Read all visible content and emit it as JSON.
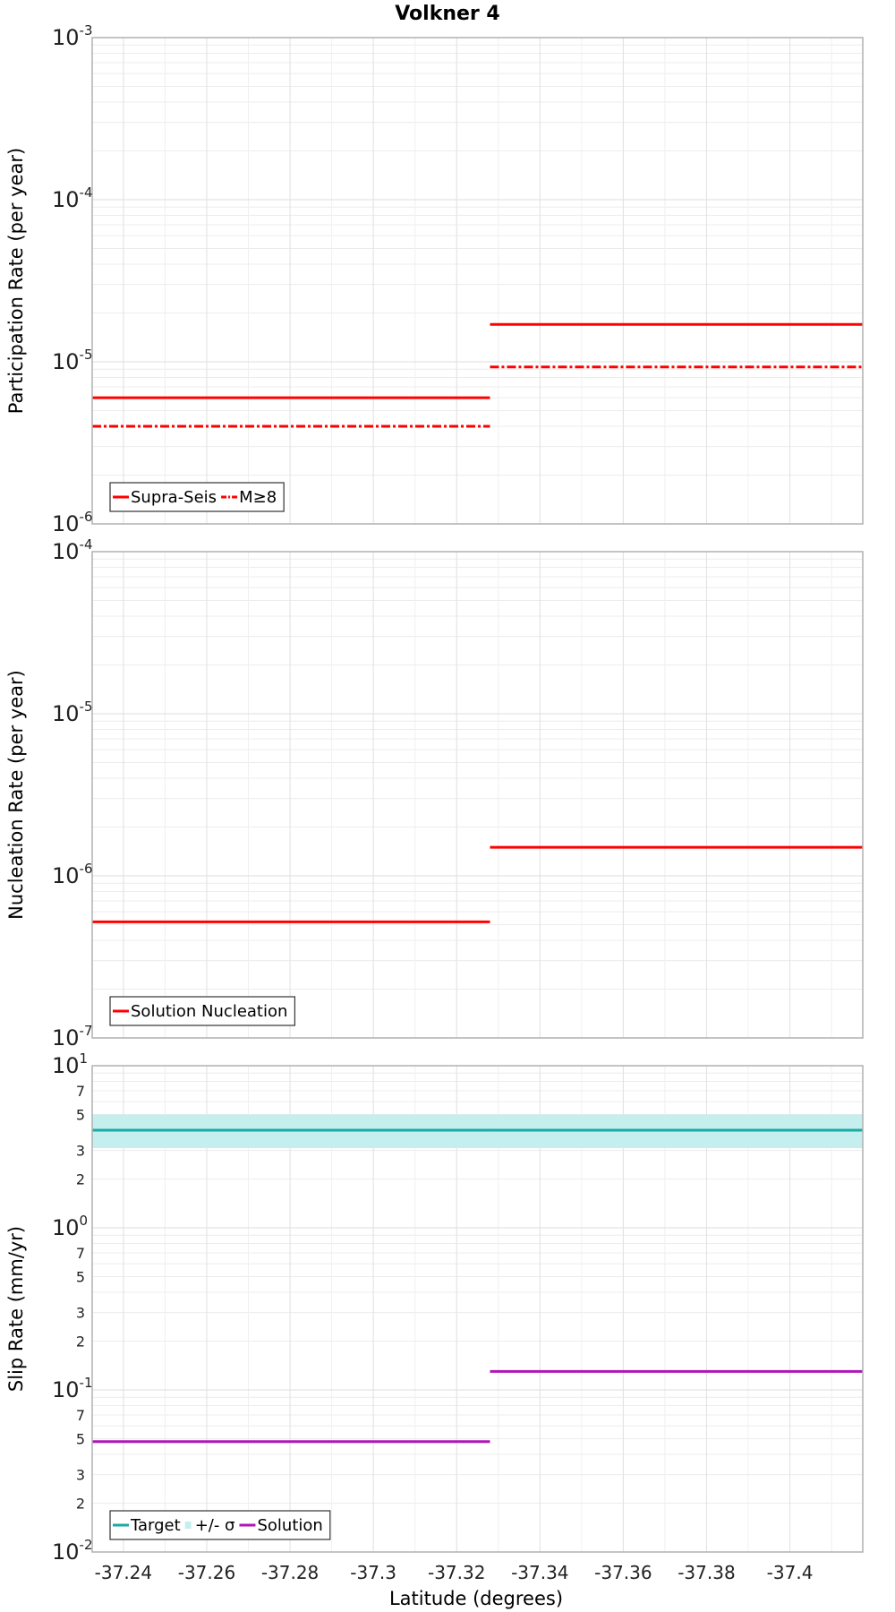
{
  "chart_data": {
    "title": "Volkner 4",
    "xlabel": "Latitude (degrees)",
    "xlim": [
      -37.2325,
      -37.4175
    ],
    "xticks": [
      "-37.24",
      "-37.26",
      "-37.28",
      "-37.3",
      "-37.32",
      "-37.34",
      "-37.36",
      "-37.38",
      "-37.4"
    ],
    "segment_bounds": [
      -37.2325,
      -37.328,
      -37.4175
    ],
    "panels": [
      {
        "type": "line",
        "ylabel": "Participation Rate (per year)",
        "yscale": "log",
        "ylim_exp": [
          -6,
          -3
        ],
        "series": [
          {
            "name": "Supra-Seis",
            "style": "solid",
            "color": "#ff0000",
            "values": [
              6e-06,
              1.7e-05
            ]
          },
          {
            "name": "M≥8",
            "style": "dashdot",
            "color": "#ff0000",
            "values": [
              4e-06,
              9.3e-06
            ]
          }
        ],
        "legend": [
          {
            "label": "Supra-Seis",
            "kind": "solid",
            "color": "#ff0000"
          },
          {
            "label": "M≥8",
            "kind": "dashdot",
            "color": "#ff0000"
          }
        ]
      },
      {
        "type": "line",
        "ylabel": "Nucleation Rate (per year)",
        "yscale": "log",
        "ylim_exp": [
          -7,
          -4
        ],
        "series": [
          {
            "name": "Solution Nucleation",
            "style": "solid",
            "color": "#ff0000",
            "values": [
              5.2e-07,
              1.5e-06
            ]
          }
        ],
        "legend": [
          {
            "label": "Solution Nucleation",
            "kind": "solid",
            "color": "#ff0000"
          }
        ]
      },
      {
        "type": "line",
        "ylabel": "Slip Rate (mm/yr)",
        "yscale": "log",
        "ylim_exp": [
          -2,
          1
        ],
        "minor_labels": [
          "2",
          "3",
          "5",
          "7"
        ],
        "band": {
          "name": "+/- σ",
          "color": "#c5eeee",
          "low": 3.1,
          "high": 5.0
        },
        "series": [
          {
            "name": "Target",
            "style": "solid",
            "color": "#1aaaa4",
            "values": [
              4.0,
              4.0
            ]
          },
          {
            "name": "Solution",
            "style": "solid",
            "color": "#b015b8",
            "values": [
              0.048,
              0.13
            ]
          }
        ],
        "legend": [
          {
            "label": "Target",
            "kind": "solid",
            "color": "#1aaaa4"
          },
          {
            "label": "+/- σ",
            "kind": "band",
            "color": "#c5eeee"
          },
          {
            "label": "Solution",
            "kind": "solid",
            "color": "#b015b8"
          }
        ]
      }
    ]
  }
}
